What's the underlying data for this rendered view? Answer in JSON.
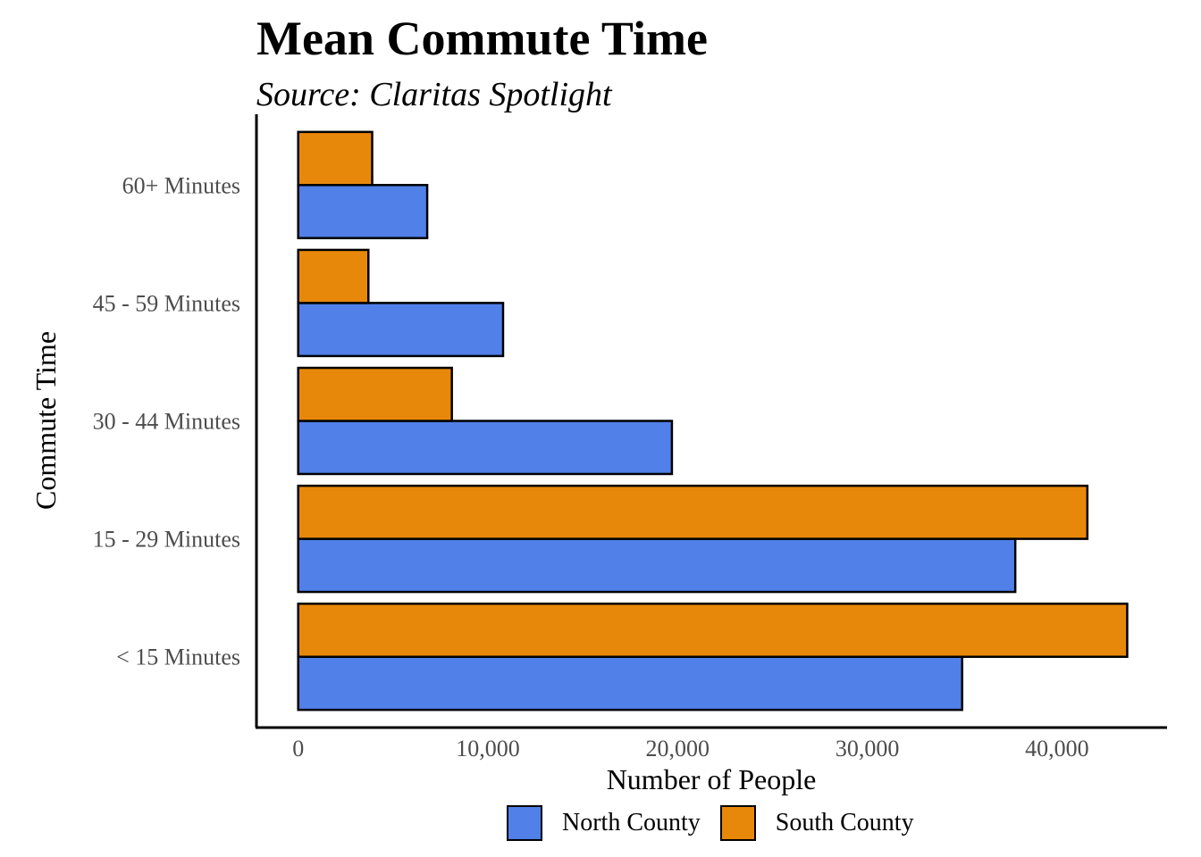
{
  "chart_data": {
    "type": "bar",
    "orientation": "horizontal",
    "title": "Mean Commute Time",
    "subtitle": "Source: Claritas Spotlight",
    "xlabel": "Number of People",
    "ylabel": "Commute Time",
    "categories": [
      "< 15 Minutes",
      "15 - 29 Minutes",
      "30 - 44 Minutes",
      "45 - 59 Minutes",
      "60+ Minutes"
    ],
    "series": [
      {
        "name": "North County",
        "color": "#5080E8",
        "values": [
          35000,
          37800,
          19700,
          10800,
          6800
        ]
      },
      {
        "name": "South County",
        "color": "#E8880A",
        "values": [
          43700,
          41600,
          8100,
          3700,
          3900
        ]
      }
    ],
    "xlim": [
      -2200,
      45800
    ],
    "xticks": [
      0,
      10000,
      20000,
      30000,
      40000
    ],
    "xtick_labels": [
      "0",
      "10,000",
      "20,000",
      "30,000",
      "40,000"
    ],
    "grid": false,
    "legend_position": "bottom"
  }
}
